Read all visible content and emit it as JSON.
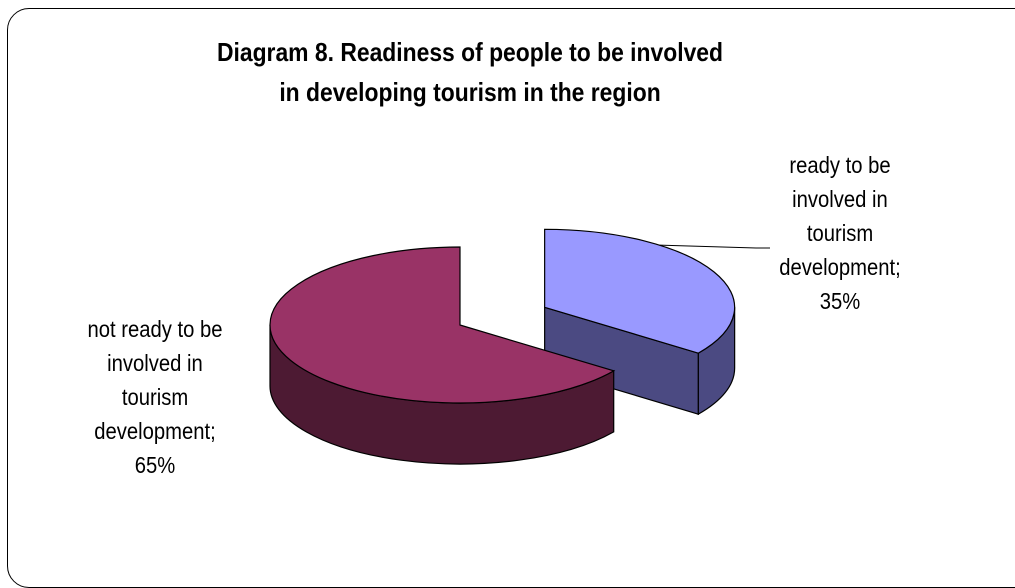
{
  "chart_data": {
    "type": "pie",
    "title_lines": [
      "Diagram 8. Readiness of people to be involved",
      "in developing tourism in the region"
    ],
    "three_d": true,
    "exploded_slice": 0,
    "slices": [
      {
        "label_lines": [
          "ready to be",
          "involved in",
          "tourism",
          "development;",
          "35%"
        ],
        "value": 35,
        "color_top": "#9999ff",
        "color_side": "#4b4a82"
      },
      {
        "label_lines": [
          "not ready to be",
          "involved in",
          "tourism",
          "development;",
          "65%"
        ],
        "value": 65,
        "color_top": "#993366",
        "color_side": "#4d1a33"
      }
    ],
    "legend": "none"
  }
}
